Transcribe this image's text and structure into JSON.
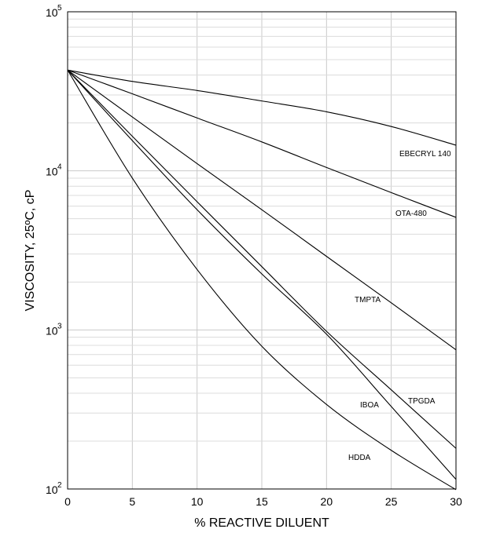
{
  "chart_data": {
    "type": "line",
    "title": "",
    "xlabel": "% REACTIVE DILUENT",
    "ylabel": "VISCOSITY, 25ºC, cP",
    "xlim": [
      0,
      30
    ],
    "ylim": [
      100,
      100000
    ],
    "y_scale": "log",
    "grid": true,
    "x_ticks": [
      0,
      5,
      10,
      15,
      20,
      25,
      30
    ],
    "x_tick_labels": [
      "0",
      "5",
      "10",
      "15",
      "20",
      "25",
      "30"
    ],
    "y_ticks": [
      100,
      1000,
      10000,
      100000
    ],
    "y_tick_labels": [
      {
        "base": "10",
        "exp": "2"
      },
      {
        "base": "10",
        "exp": "3"
      },
      {
        "base": "10",
        "exp": "4"
      },
      {
        "base": "10",
        "exp": "5"
      }
    ],
    "series": [
      {
        "name": "EBECRYL 140",
        "x": [
          0,
          5,
          10,
          15,
          20,
          25,
          30
        ],
        "y": [
          43000,
          36500,
          32000,
          27500,
          23500,
          19000,
          14500
        ]
      },
      {
        "name": "OTA-480",
        "x": [
          0,
          5,
          10,
          15,
          20,
          25,
          30
        ],
        "y": [
          43000,
          30500,
          21500,
          15200,
          10500,
          7300,
          5100
        ]
      },
      {
        "name": "TMPTA",
        "x": [
          0,
          5,
          10,
          15,
          20,
          25,
          30
        ],
        "y": [
          43000,
          21800,
          11100,
          5700,
          2900,
          1480,
          750
        ]
      },
      {
        "name": "TPGDA",
        "x": [
          0,
          5,
          10,
          15,
          20,
          25,
          30
        ],
        "y": [
          43000,
          16500,
          6400,
          2500,
          980,
          420,
          180
        ]
      },
      {
        "name": "IBOA",
        "x": [
          0,
          5,
          10,
          15,
          20,
          25,
          30
        ],
        "y": [
          43000,
          15500,
          5700,
          2250,
          940,
          330,
          115
        ]
      },
      {
        "name": "HDDA",
        "x": [
          0,
          5,
          10,
          15,
          20,
          25,
          30
        ],
        "y": [
          43000,
          9000,
          2400,
          790,
          340,
          175,
          99
        ]
      }
    ]
  }
}
